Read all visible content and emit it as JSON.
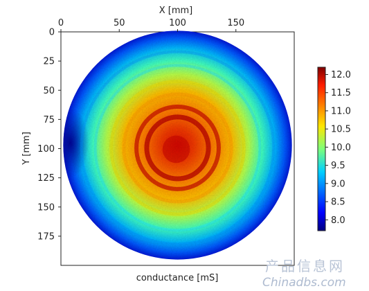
{
  "chart_data": {
    "type": "heatmap",
    "title": "",
    "xlabel_top": "X [mm]",
    "xlabel_bottom": "conductance [mS]",
    "ylabel": "Y [mm]",
    "x_ticks": [
      0,
      50,
      100,
      150
    ],
    "y_ticks": [
      0,
      25,
      50,
      75,
      100,
      125,
      150,
      175
    ],
    "xlim": [
      0,
      200
    ],
    "ylim": [
      0,
      200
    ],
    "y_inverted": true,
    "x_axis_position": "top",
    "grid": false,
    "colormap": "jet",
    "colorbar": {
      "label": "",
      "range": [
        7.7,
        12.2
      ],
      "ticks": [
        8.0,
        8.5,
        9.0,
        9.5,
        10.0,
        10.5,
        11.0,
        11.5,
        12.0
      ],
      "tick_labels": [
        "8.0",
        "8.5",
        "9.0",
        "9.5",
        "10.0",
        "10.5",
        "11.0",
        "11.5",
        "12.0"
      ],
      "placement": "right"
    },
    "wafer": {
      "center_x": 100,
      "center_y": 97,
      "radius": 98
    },
    "regions": [
      {
        "name": "center hot spot",
        "center": [
          100,
          98
        ],
        "approx_value": 12.0
      },
      {
        "name": "inner ring",
        "center": [
          100,
          98
        ],
        "radius": 38,
        "approx_value": 11.5
      },
      {
        "name": "mid ring",
        "center": [
          100,
          98
        ],
        "radius": 62,
        "approx_value": 10.4
      },
      {
        "name": "outer ring",
        "center": [
          100,
          98
        ],
        "radius": 85,
        "approx_value": 9.3
      },
      {
        "name": "edge",
        "center": [
          100,
          98
        ],
        "radius": 97,
        "approx_value": 8.4
      },
      {
        "name": "left edge minimum",
        "center": [
          8,
          95
        ],
        "approx_value": 7.9
      }
    ]
  },
  "watermark": {
    "cn": "产品信息网",
    "en": "Chinadbs.com"
  }
}
